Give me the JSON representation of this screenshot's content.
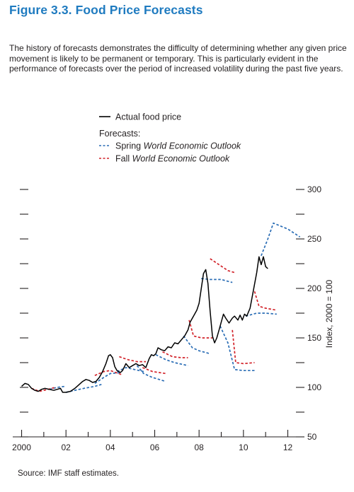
{
  "figure": {
    "title": "Figure 3.3.  Food Price Forecasts",
    "description": "The history of forecasts demonstrates the difficulty of determining whether any given price movement is likely to be permanent or temporary. This is particularly evident in the performance of forecasts over the period of increased volatility during the past five years.",
    "source": "Source: IMF staff estimates."
  },
  "colors": {
    "actual": "#000000",
    "spring": "#2a6db5",
    "fall": "#d2232a",
    "axis": "#231f20"
  },
  "chart_data": {
    "type": "line",
    "ylabel": "Index, 2000 = 100",
    "ylim": [
      50,
      300
    ],
    "yticks": [
      50,
      100,
      150,
      200,
      250,
      300
    ],
    "xlim": [
      1999.6,
      2012.75
    ],
    "xticks": [
      {
        "value": 2000,
        "label": "2000"
      },
      {
        "value": 2002,
        "label": "02"
      },
      {
        "value": 2004,
        "label": "04"
      },
      {
        "value": 2006,
        "label": "06"
      },
      {
        "value": 2008,
        "label": "08"
      },
      {
        "value": 2010,
        "label": "10"
      },
      {
        "value": 2012,
        "label": "12"
      }
    ],
    "legend": {
      "actual": "Actual food price",
      "forecasts_header": "Forecasts:",
      "spring_prefix": "Spring ",
      "fall_prefix": "Fall ",
      "weo": "World Economic Outlook"
    },
    "actual": {
      "name": "Actual food price",
      "points": [
        [
          2000.0,
          101
        ],
        [
          2000.15,
          104
        ],
        [
          2000.3,
          103
        ],
        [
          2000.45,
          99
        ],
        [
          2000.6,
          97
        ],
        [
          2000.75,
          96
        ],
        [
          2000.9,
          98
        ],
        [
          2001.05,
          99
        ],
        [
          2001.25,
          98
        ],
        [
          2001.45,
          97
        ],
        [
          2001.6,
          98
        ],
        [
          2001.75,
          99
        ],
        [
          2001.85,
          95
        ],
        [
          2002.0,
          95
        ],
        [
          2002.2,
          96
        ],
        [
          2002.4,
          99
        ],
        [
          2002.6,
          103
        ],
        [
          2002.75,
          106
        ],
        [
          2002.9,
          108
        ],
        [
          2003.05,
          107
        ],
        [
          2003.2,
          105
        ],
        [
          2003.35,
          106
        ],
        [
          2003.5,
          110
        ],
        [
          2003.65,
          116
        ],
        [
          2003.8,
          124
        ],
        [
          2003.92,
          132
        ],
        [
          2004.0,
          133
        ],
        [
          2004.1,
          130
        ],
        [
          2004.2,
          121
        ],
        [
          2004.3,
          117
        ],
        [
          2004.45,
          115
        ],
        [
          2004.55,
          117
        ],
        [
          2004.7,
          124
        ],
        [
          2004.85,
          120
        ],
        [
          2005.0,
          122
        ],
        [
          2005.15,
          124
        ],
        [
          2005.3,
          122
        ],
        [
          2005.45,
          123
        ],
        [
          2005.6,
          120
        ],
        [
          2005.75,
          129
        ],
        [
          2005.85,
          133
        ],
        [
          2005.95,
          132
        ],
        [
          2006.05,
          134
        ],
        [
          2006.15,
          140
        ],
        [
          2006.3,
          138
        ],
        [
          2006.45,
          137
        ],
        [
          2006.6,
          141
        ],
        [
          2006.75,
          140
        ],
        [
          2006.9,
          145
        ],
        [
          2007.05,
          144
        ],
        [
          2007.2,
          148
        ],
        [
          2007.35,
          152
        ],
        [
          2007.5,
          158
        ],
        [
          2007.6,
          166
        ],
        [
          2007.75,
          172
        ],
        [
          2007.9,
          178
        ],
        [
          2008.0,
          185
        ],
        [
          2008.1,
          200
        ],
        [
          2008.2,
          215
        ],
        [
          2008.3,
          219
        ],
        [
          2008.4,
          205
        ],
        [
          2008.5,
          177
        ],
        [
          2008.6,
          152
        ],
        [
          2008.7,
          145
        ],
        [
          2008.8,
          150
        ],
        [
          2008.9,
          158
        ],
        [
          2009.0,
          166
        ],
        [
          2009.1,
          174
        ],
        [
          2009.2,
          170
        ],
        [
          2009.35,
          165
        ],
        [
          2009.5,
          170
        ],
        [
          2009.6,
          172
        ],
        [
          2009.75,
          168
        ],
        [
          2009.85,
          173
        ],
        [
          2009.95,
          168
        ],
        [
          2010.05,
          174
        ],
        [
          2010.15,
          172
        ],
        [
          2010.3,
          180
        ],
        [
          2010.45,
          198
        ],
        [
          2010.6,
          216
        ],
        [
          2010.7,
          232
        ],
        [
          2010.8,
          224
        ],
        [
          2010.9,
          232
        ],
        [
          2011.0,
          222
        ],
        [
          2011.1,
          220
        ]
      ]
    },
    "spring_forecasts": [
      {
        "name": "Spring WEO 2001",
        "points": [
          [
            2001.25,
            98
          ],
          [
            2001.6,
            100
          ],
          [
            2001.95,
            101
          ]
        ]
      },
      {
        "name": "Spring WEO 2002",
        "points": [
          [
            2002.0,
            95
          ],
          [
            2002.4,
            97
          ],
          [
            2002.8,
            99
          ],
          [
            2003.3,
            101
          ],
          [
            2003.6,
            103
          ]
        ]
      },
      {
        "name": "Spring WEO 2003",
        "points": [
          [
            2003.3,
            104
          ],
          [
            2003.7,
            110
          ],
          [
            2004.0,
            114
          ],
          [
            2004.5,
            115
          ]
        ]
      },
      {
        "name": "Spring WEO 2004",
        "points": [
          [
            2004.3,
            116
          ],
          [
            2004.7,
            120
          ],
          [
            2005.1,
            118
          ],
          [
            2005.5,
            116
          ]
        ]
      },
      {
        "name": "Spring WEO 2005",
        "points": [
          [
            2005.2,
            122
          ],
          [
            2005.5,
            114
          ],
          [
            2005.9,
            110
          ],
          [
            2006.5,
            106
          ]
        ]
      },
      {
        "name": "Spring WEO 2006",
        "points": [
          [
            2006.05,
            133
          ],
          [
            2006.5,
            128
          ],
          [
            2006.9,
            125
          ],
          [
            2007.5,
            122
          ]
        ]
      },
      {
        "name": "Spring WEO 2007",
        "points": [
          [
            2007.3,
            152
          ],
          [
            2007.7,
            140
          ],
          [
            2008.0,
            137
          ],
          [
            2008.5,
            134
          ]
        ]
      },
      {
        "name": "Spring WEO 2008",
        "points": [
          [
            2008.1,
            210
          ],
          [
            2008.5,
            209
          ],
          [
            2009.0,
            209
          ],
          [
            2009.5,
            206
          ]
        ]
      },
      {
        "name": "Spring WEO 2009",
        "points": [
          [
            2008.95,
            162
          ],
          [
            2009.3,
            145
          ],
          [
            2009.6,
            118
          ],
          [
            2010.0,
            117
          ],
          [
            2010.5,
            117
          ]
        ]
      },
      {
        "name": "Spring WEO 2010",
        "points": [
          [
            2010.1,
            172
          ],
          [
            2010.6,
            175
          ],
          [
            2011.0,
            175
          ],
          [
            2011.5,
            174
          ]
        ]
      },
      {
        "name": "Spring WEO 2011",
        "points": [
          [
            2010.8,
            233
          ],
          [
            2011.1,
            250
          ],
          [
            2011.35,
            266
          ],
          [
            2012.0,
            260
          ],
          [
            2012.55,
            252
          ]
        ]
      }
    ],
    "fall_forecasts": [
      {
        "name": "Fall WEO 2000",
        "points": [
          [
            2000.45,
            99
          ],
          [
            2000.8,
            96
          ],
          [
            2001.2,
            98
          ],
          [
            2001.5,
            100
          ]
        ]
      },
      {
        "name": "Fall WEO 2003",
        "points": [
          [
            2003.3,
            112
          ],
          [
            2003.7,
            116
          ],
          [
            2004.0,
            117
          ],
          [
            2004.5,
            113
          ]
        ]
      },
      {
        "name": "Fall WEO 2004",
        "points": [
          [
            2004.4,
            131
          ],
          [
            2004.8,
            128
          ],
          [
            2005.2,
            126
          ],
          [
            2005.6,
            126
          ]
        ]
      },
      {
        "name": "Fall WEO 2005",
        "points": [
          [
            2005.45,
            120
          ],
          [
            2005.9,
            116
          ],
          [
            2006.2,
            115
          ],
          [
            2006.5,
            114
          ]
        ]
      },
      {
        "name": "Fall WEO 2006",
        "points": [
          [
            2006.35,
            136
          ],
          [
            2006.8,
            131
          ],
          [
            2007.2,
            130
          ],
          [
            2007.5,
            130
          ]
        ]
      },
      {
        "name": "Fall WEO 2007",
        "points": [
          [
            2007.55,
            168
          ],
          [
            2007.75,
            152
          ],
          [
            2008.1,
            150
          ],
          [
            2008.6,
            150
          ]
        ]
      },
      {
        "name": "Fall WEO 2008",
        "points": [
          [
            2008.5,
            230
          ],
          [
            2008.9,
            224
          ],
          [
            2009.3,
            218
          ],
          [
            2009.6,
            216
          ]
        ]
      },
      {
        "name": "Fall WEO 2009",
        "points": [
          [
            2009.5,
            158
          ],
          [
            2009.65,
            125
          ],
          [
            2010.0,
            124
          ],
          [
            2010.5,
            125
          ]
        ]
      },
      {
        "name": "Fall WEO 2010",
        "points": [
          [
            2010.5,
            197
          ],
          [
            2010.7,
            182
          ],
          [
            2011.0,
            180
          ],
          [
            2011.5,
            178
          ]
        ]
      }
    ]
  }
}
